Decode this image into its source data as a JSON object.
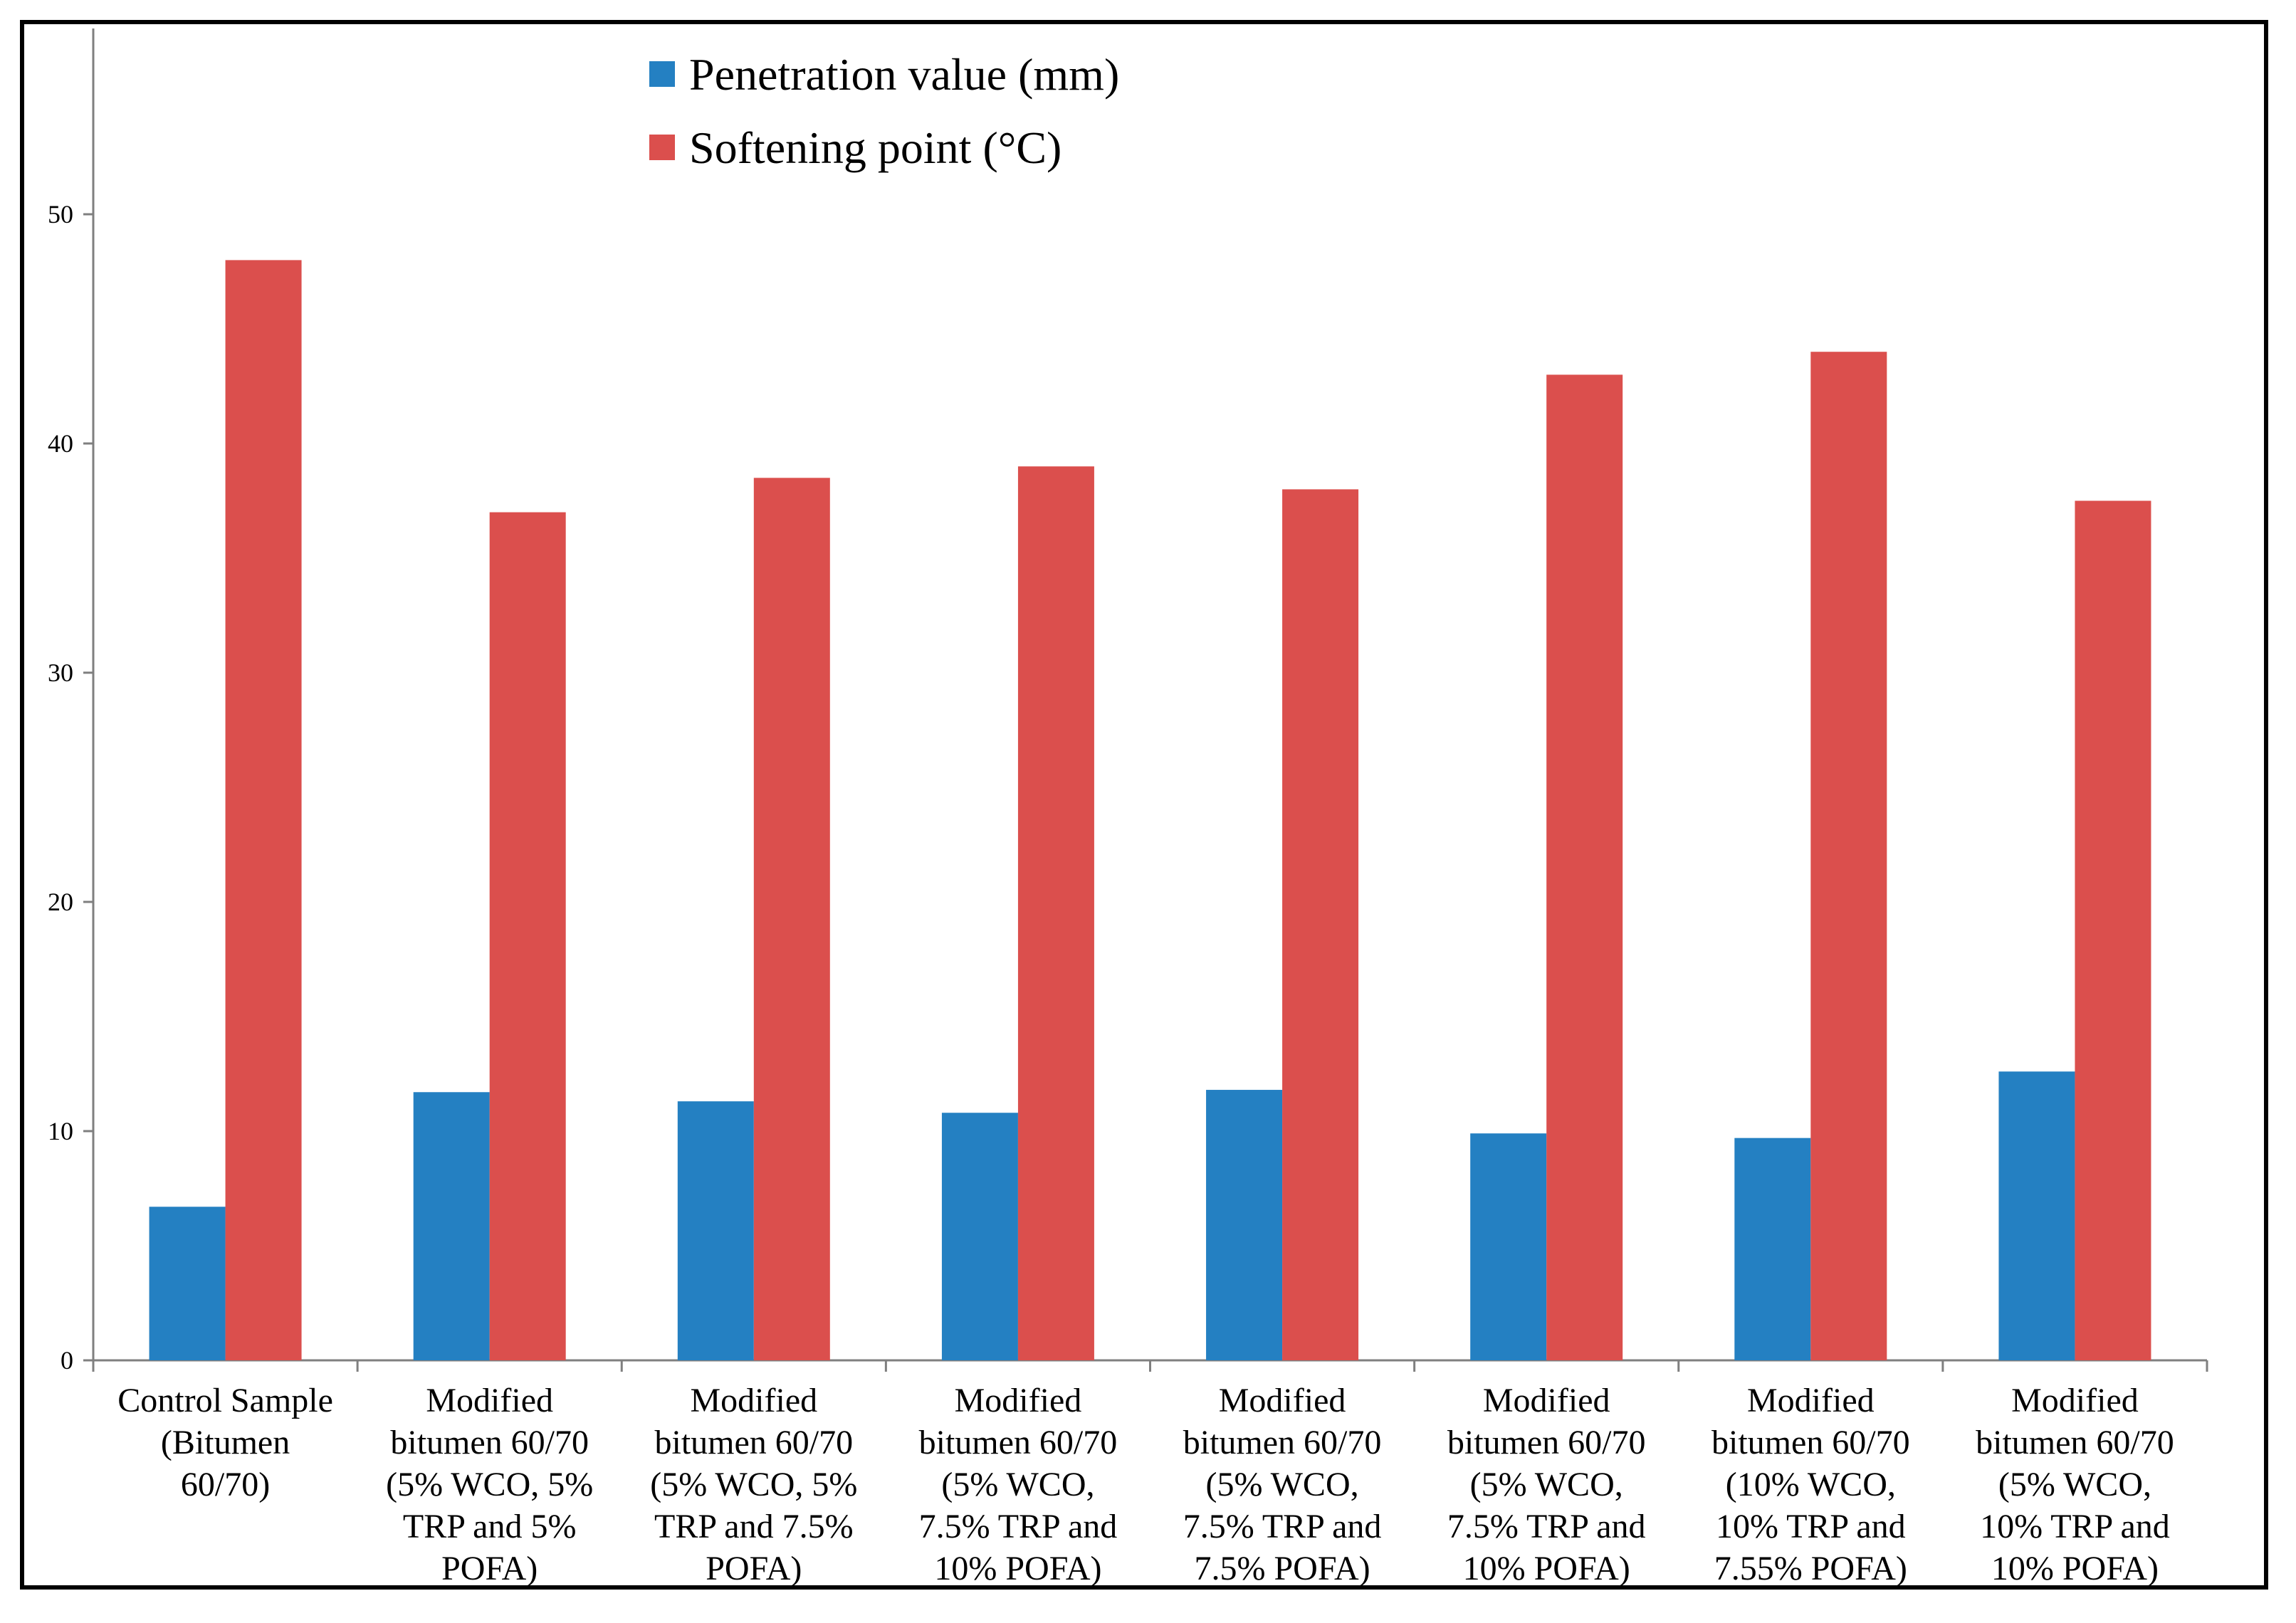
{
  "chart_data": {
    "type": "bar",
    "title": "",
    "xlabel": "",
    "ylabel": "",
    "ylim": [
      0,
      55
    ],
    "yticks": [
      0,
      10,
      20,
      30,
      40,
      50
    ],
    "grid": false,
    "legend_position": "top-center",
    "categories": [
      [
        "Control Sample",
        "(Bitumen",
        "60/70)"
      ],
      [
        "Modified",
        "bitumen 60/70",
        "(5% WCO, 5%",
        "TRP and 5%",
        "POFA)"
      ],
      [
        "Modified",
        "bitumen 60/70",
        "(5% WCO, 5%",
        "TRP and 7.5%",
        "POFA)"
      ],
      [
        "Modified",
        "bitumen 60/70",
        "(5% WCO,",
        "7.5% TRP and",
        "10% POFA)"
      ],
      [
        "Modified",
        "bitumen 60/70",
        "(5% WCO,",
        "7.5% TRP and",
        "7.5% POFA)"
      ],
      [
        "Modified",
        "bitumen 60/70",
        "(5% WCO,",
        "7.5% TRP and",
        "10% POFA)"
      ],
      [
        "Modified",
        "bitumen 60/70",
        "(10% WCO,",
        "10% TRP and",
        "7.55% POFA)"
      ],
      [
        "Modified",
        "bitumen 60/70",
        "(5% WCO,",
        "10% TRP and",
        "10% POFA)"
      ]
    ],
    "series": [
      {
        "name": "Penetration value (mm)",
        "color": "#2480C2",
        "values": [
          6.7,
          11.7,
          11.3,
          10.8,
          11.8,
          9.9,
          9.7,
          12.6
        ]
      },
      {
        "name": "Softening point (°C)",
        "color": "#DB4F4D",
        "values": [
          48.0,
          37.0,
          38.5,
          39.0,
          38.0,
          43.0,
          44.0,
          37.5
        ]
      }
    ]
  }
}
